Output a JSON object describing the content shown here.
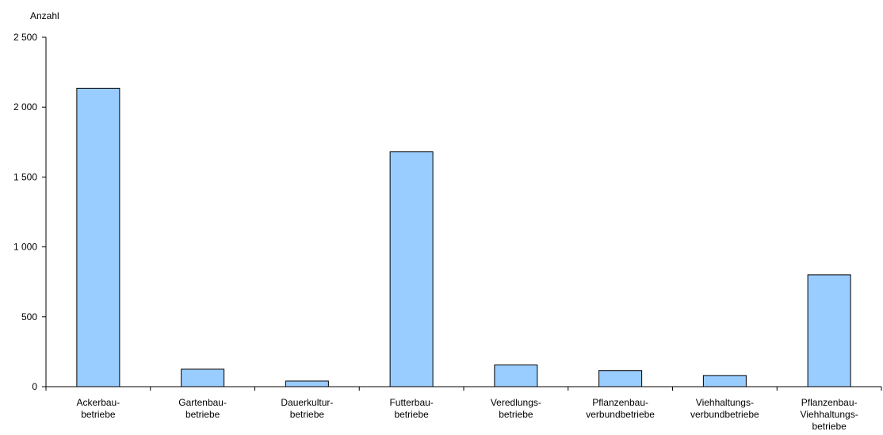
{
  "chart_data": {
    "type": "bar",
    "ylabel": "Anzahl",
    "ylim": [
      0,
      2500
    ],
    "yticks": [
      0,
      500,
      1000,
      1500,
      2000,
      2500
    ],
    "ytick_labels": [
      "0",
      "500",
      "1 000",
      "1 500",
      "2 000",
      "2 500"
    ],
    "categories": [
      [
        "Ackerbau-",
        "betriebe"
      ],
      [
        "Gartenbau-",
        "betriebe"
      ],
      [
        "Dauerkultur-",
        "betriebe"
      ],
      [
        "Futterbau-",
        "betriebe"
      ],
      [
        "Veredlungs-",
        "betriebe"
      ],
      [
        "Pflanzenbau-",
        "verbundbetriebe"
      ],
      [
        "Viehhaltungs-",
        "verbundbetriebe"
      ],
      [
        "Pflanzenbau-",
        "Viehhaltungs-",
        "betriebe"
      ]
    ],
    "values": [
      2135,
      125,
      40,
      1680,
      155,
      115,
      80,
      800
    ],
    "colors": {
      "bar_fill": "#99ccff",
      "bar_stroke": "#000000",
      "axis": "#000000"
    },
    "grid": false,
    "legend": "none"
  }
}
